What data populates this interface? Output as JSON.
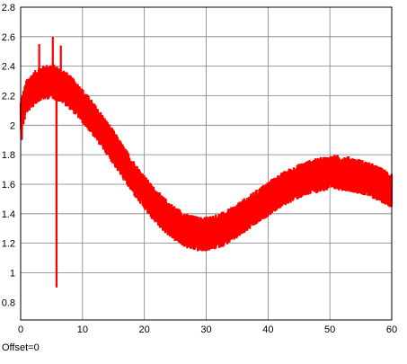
{
  "chart_data": {
    "type": "line",
    "title": "",
    "xlabel": "",
    "ylabel": "",
    "xlim": [
      0,
      60
    ],
    "ylim": [
      0.68,
      2.8
    ],
    "grid": true,
    "x_ticks": [
      0,
      10,
      20,
      30,
      40,
      50,
      60
    ],
    "y_ticks": [
      1,
      1.2,
      1.4,
      1.6,
      1.8,
      2,
      2.2,
      2.4,
      2.6,
      2.8
    ],
    "y_tick_labels": [
      "1",
      "1.2",
      "1.4",
      "1.6",
      "1.8",
      "2",
      "2.2",
      "2.4",
      "2.6",
      "2.8"
    ],
    "x_tick_labels": [
      "0",
      "10",
      "20",
      "30",
      "40",
      "50",
      "60"
    ],
    "extra_y_tick_labels": [
      {
        "value": 0.8,
        "label": "0.8"
      }
    ],
    "series": [
      {
        "color": "#ff0000",
        "envelope_center": {
          "x": [
            0,
            1,
            3,
            5,
            7,
            9,
            11,
            13,
            15,
            17,
            19,
            21,
            23,
            25,
            27,
            29,
            31,
            33,
            35,
            37,
            39,
            41,
            43,
            45,
            47,
            49,
            51,
            53,
            55,
            57,
            59,
            60
          ],
          "y": [
            2.05,
            2.2,
            2.28,
            2.3,
            2.26,
            2.18,
            2.08,
            1.97,
            1.85,
            1.72,
            1.6,
            1.49,
            1.4,
            1.33,
            1.28,
            1.26,
            1.27,
            1.3,
            1.35,
            1.41,
            1.47,
            1.53,
            1.58,
            1.62,
            1.65,
            1.67,
            1.68,
            1.67,
            1.65,
            1.62,
            1.58,
            1.56
          ]
        },
        "noise_amplitude": 0.12,
        "spikes": [
          {
            "x": 5.2,
            "y": 2.6
          },
          {
            "x": 5.8,
            "y": 0.9
          },
          {
            "x": 3.0,
            "y": 2.55
          },
          {
            "x": 6.5,
            "y": 2.54
          },
          {
            "x": 0.2,
            "y": 1.9
          }
        ]
      }
    ],
    "footer_text": "Offset=0"
  }
}
